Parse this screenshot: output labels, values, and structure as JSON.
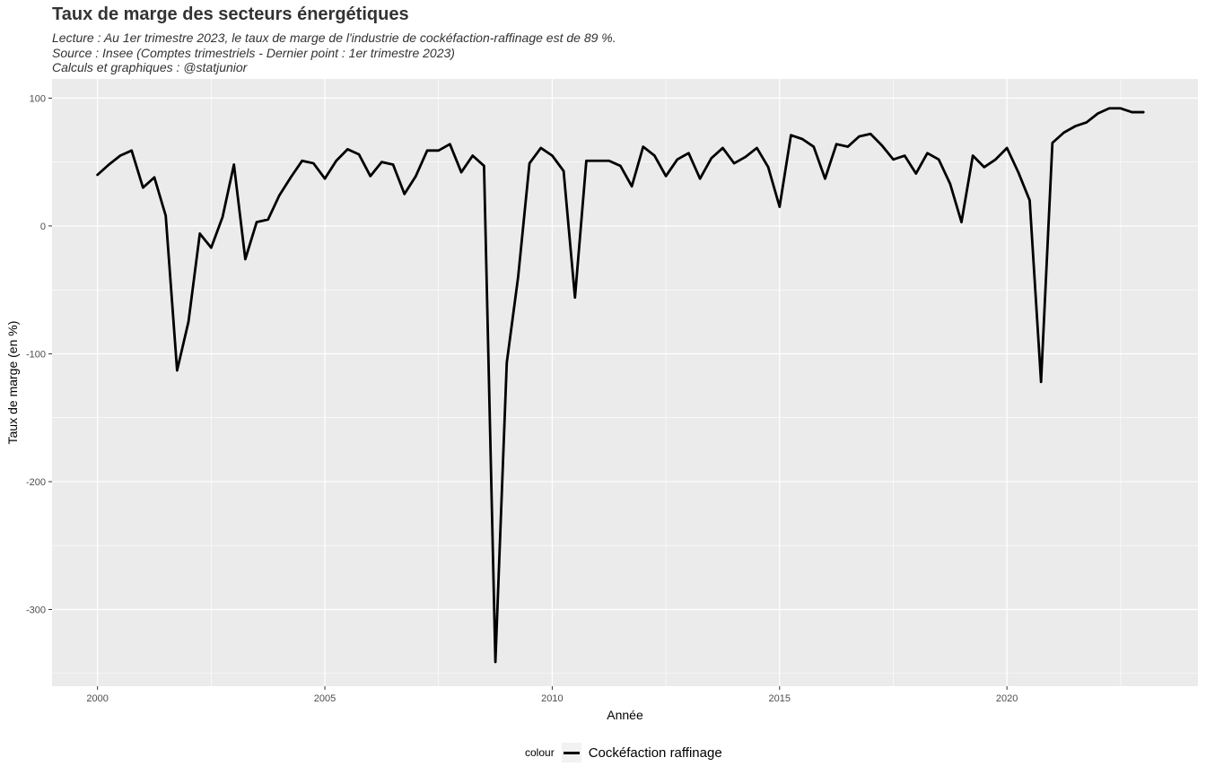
{
  "header": {
    "title": "Taux de marge des secteurs énergétiques",
    "subtitle_lines": [
      "Lecture : Au 1er trimestre 2023, le taux de marge de l'industrie de cockéfaction-raffinage est de 89 %.",
      "Source : Insee (Comptes trimestriels - Dernier point : 1er trimestre 2023)",
      "Calculs et graphiques : @statjunior"
    ]
  },
  "legend": {
    "title": "colour",
    "label": "Cockéfaction raffinage"
  },
  "colors": {
    "panel": "#ebebeb",
    "grid": "#ffffff",
    "line": "#000000"
  },
  "chart_data": {
    "type": "line",
    "xlabel": "Année",
    "ylabel": "Taux de marge (en %)",
    "xlim": [
      1999.0,
      2024.2
    ],
    "ylim": [
      -360,
      115
    ],
    "xticks": [
      2000,
      2005,
      2010,
      2015,
      2020
    ],
    "yticks": [
      100,
      0,
      -100,
      -200,
      -300
    ],
    "grid": true,
    "legend_position": "bottom",
    "series": [
      {
        "name": "Cockéfaction raffinage",
        "x": [
          2000.0,
          2000.25,
          2000.5,
          2000.75,
          2001.0,
          2001.25,
          2001.5,
          2001.75,
          2002.0,
          2002.25,
          2002.5,
          2002.75,
          2003.0,
          2003.25,
          2003.5,
          2003.75,
          2004.0,
          2004.25,
          2004.5,
          2004.75,
          2005.0,
          2005.25,
          2005.5,
          2005.75,
          2006.0,
          2006.25,
          2006.5,
          2006.75,
          2007.0,
          2007.25,
          2007.5,
          2007.75,
          2008.0,
          2008.25,
          2008.5,
          2008.75,
          2009.0,
          2009.25,
          2009.5,
          2009.75,
          2010.0,
          2010.25,
          2010.5,
          2010.75,
          2011.0,
          2011.25,
          2011.5,
          2011.75,
          2012.0,
          2012.25,
          2012.5,
          2012.75,
          2013.0,
          2013.25,
          2013.5,
          2013.75,
          2014.0,
          2014.25,
          2014.5,
          2014.75,
          2015.0,
          2015.25,
          2015.5,
          2015.75,
          2016.0,
          2016.25,
          2016.5,
          2016.75,
          2017.0,
          2017.25,
          2017.5,
          2017.75,
          2018.0,
          2018.25,
          2018.5,
          2018.75,
          2019.0,
          2019.25,
          2019.5,
          2019.75,
          2020.0,
          2020.25,
          2020.5,
          2020.75,
          2021.0,
          2021.25,
          2021.5,
          2021.75,
          2022.0,
          2022.25,
          2022.5,
          2022.75,
          2023.0
        ],
        "y": [
          40,
          48,
          55,
          59,
          30,
          38,
          8,
          -113,
          -75,
          -6,
          -17,
          7,
          48,
          -26,
          3,
          5,
          24,
          38,
          51,
          49,
          37,
          51,
          60,
          56,
          39,
          50,
          48,
          25,
          39,
          59,
          59,
          64,
          42,
          55,
          47,
          -341,
          -107,
          -40,
          49,
          61,
          55,
          43,
          -56,
          51,
          51,
          51,
          47,
          31,
          62,
          55,
          39,
          52,
          57,
          37,
          53,
          61,
          49,
          54,
          61,
          46,
          15,
          71,
          68,
          62,
          37,
          64,
          62,
          70,
          72,
          63,
          52,
          55,
          41,
          57,
          52,
          33,
          3,
          55,
          46,
          52,
          61,
          42,
          20,
          -122,
          65,
          73,
          78,
          81,
          88,
          92,
          92,
          89,
          89
        ]
      }
    ]
  }
}
